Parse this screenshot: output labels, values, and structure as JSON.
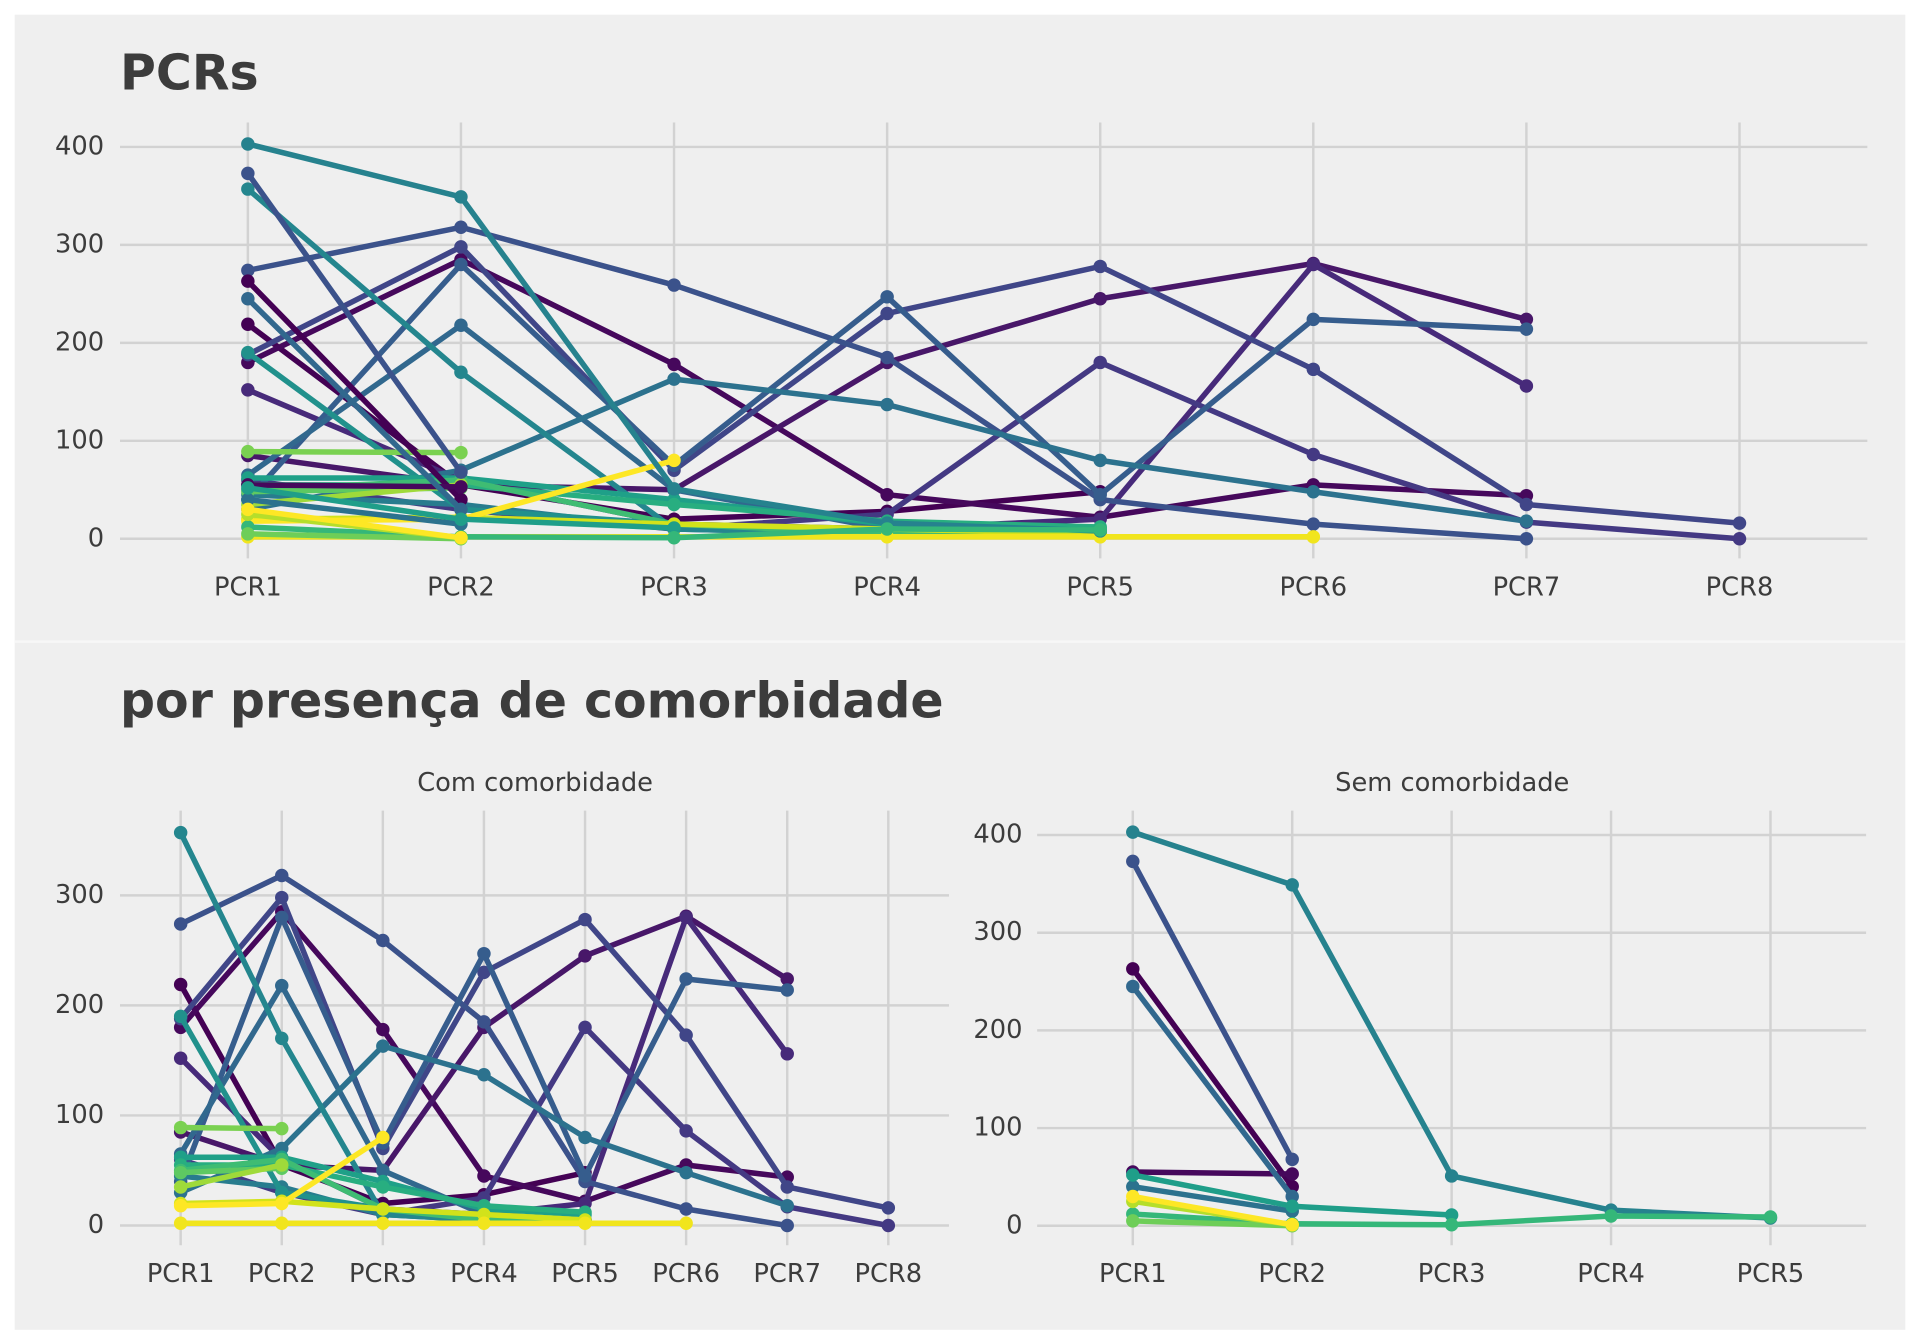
{
  "chart_data": [
    {
      "type": "line",
      "title": "PCRs",
      "categories": [
        "PCR1",
        "PCR2",
        "PCR3",
        "PCR4",
        "PCR5",
        "PCR6",
        "PCR7",
        "PCR8"
      ],
      "ylim": [
        -20,
        425
      ],
      "yticks": [
        0,
        100,
        200,
        300,
        400
      ],
      "grid": true,
      "series": [
        {
          "color": "#440154",
          "values": [
            219,
            55,
            20,
            28,
            48,
            null,
            null,
            null
          ]
        },
        {
          "color": "#46085c",
          "values": [
            180,
            285,
            178,
            45,
            22,
            55,
            44,
            null
          ]
        },
        {
          "color": "#481769",
          "values": [
            85,
            55,
            50,
            180,
            245,
            281,
            224,
            null
          ]
        },
        {
          "color": "#472a7a",
          "values": [
            152,
            60,
            15,
            10,
            20,
            280,
            156,
            null
          ]
        },
        {
          "color": "#443983",
          "values": [
            60,
            30,
            10,
            25,
            180,
            86,
            17,
            0
          ]
        },
        {
          "color": "#404688",
          "values": [
            188,
            298,
            70,
            230,
            278,
            173,
            35,
            16
          ]
        },
        {
          "color": "#3b528b",
          "values": [
            274,
            318,
            259,
            185,
            40,
            15,
            0,
            null
          ]
        },
        {
          "color": "#365d8d",
          "values": [
            40,
            280,
            75,
            247,
            45,
            224,
            214,
            null
          ]
        },
        {
          "color": "#31688e",
          "values": [
            65,
            218,
            50,
            10,
            5,
            null,
            null,
            null
          ]
        },
        {
          "color": "#2c728e",
          "values": [
            30,
            70,
            163,
            137,
            80,
            48,
            18,
            null
          ]
        },
        {
          "color": "#287c8e",
          "values": [
            45,
            35,
            10,
            5,
            5,
            null,
            null,
            null
          ]
        },
        {
          "color": "#24868e",
          "values": [
            357,
            170,
            10,
            5,
            3,
            null,
            null,
            null
          ]
        },
        {
          "color": "#21918c",
          "values": [
            190,
            30,
            15,
            8,
            5,
            null,
            null,
            null
          ]
        },
        {
          "color": "#1fa088",
          "values": [
            62,
            62,
            40,
            15,
            10,
            null,
            null,
            null
          ]
        },
        {
          "color": "#28ae80",
          "values": [
            55,
            55,
            35,
            18,
            12,
            null,
            null,
            null
          ]
        },
        {
          "color": "#3fbc73",
          "values": [
            50,
            60,
            15,
            5,
            3,
            null,
            null,
            null
          ]
        },
        {
          "color": "#5ec962",
          "values": [
            48,
            52,
            null,
            null,
            null,
            null,
            null,
            null
          ]
        },
        {
          "color": "#7ad151",
          "values": [
            89,
            88,
            null,
            null,
            null,
            null,
            null,
            null
          ]
        },
        {
          "color": "#9fda3a",
          "values": [
            35,
            55,
            null,
            null,
            null,
            null,
            null,
            null
          ]
        },
        {
          "color": "#d2e21b",
          "values": [
            20,
            22,
            15,
            10,
            5,
            null,
            null,
            null
          ]
        },
        {
          "color": "#fde725",
          "values": [
            18,
            20,
            80,
            null,
            null,
            null,
            null,
            null
          ]
        },
        {
          "color": "#f1e51d",
          "values": [
            2,
            2,
            2,
            2,
            2,
            2,
            null,
            null
          ]
        },
        {
          "color": "#440154",
          "values": [
            263,
            40,
            null,
            null,
            null,
            null,
            null,
            null
          ]
        },
        {
          "color": "#46085c",
          "values": [
            55,
            53,
            null,
            null,
            null,
            null,
            null,
            null
          ]
        },
        {
          "color": "#3b528b",
          "values": [
            373,
            68,
            null,
            null,
            null,
            null,
            null,
            null
          ]
        },
        {
          "color": "#31688e",
          "values": [
            245,
            30,
            null,
            null,
            null,
            null,
            null,
            null
          ]
        },
        {
          "color": "#2c728e",
          "values": [
            40,
            15,
            null,
            null,
            null,
            null,
            null,
            null
          ]
        },
        {
          "color": "#26828e",
          "values": [
            403,
            349,
            51,
            16,
            8,
            null,
            null,
            null
          ]
        },
        {
          "color": "#1f9e89",
          "values": [
            52,
            20,
            11,
            null,
            null,
            null,
            null,
            null
          ]
        },
        {
          "color": "#35b779",
          "values": [
            12,
            2,
            1,
            10,
            9,
            null,
            null,
            null
          ]
        },
        {
          "color": "#6ece58",
          "values": [
            5,
            0,
            null,
            null,
            null,
            null,
            null,
            null
          ]
        },
        {
          "color": "#b5de2b",
          "values": [
            25,
            1,
            null,
            null,
            null,
            null,
            null,
            null
          ]
        },
        {
          "color": "#fde725",
          "values": [
            30,
            1,
            null,
            null,
            null,
            null,
            null,
            null
          ]
        }
      ]
    },
    {
      "type": "line",
      "title": "por presença de comorbidade",
      "subtitle": "Com comorbidade",
      "categories": [
        "PCR1",
        "PCR2",
        "PCR3",
        "PCR4",
        "PCR5",
        "PCR6",
        "PCR7",
        "PCR8"
      ],
      "ylim": [
        -18,
        377
      ],
      "yticks": [
        0,
        100,
        200,
        300
      ],
      "grid": true,
      "series": [
        {
          "color": "#440154",
          "values": [
            219,
            55,
            20,
            28,
            48,
            null,
            null,
            null
          ]
        },
        {
          "color": "#46085c",
          "values": [
            180,
            285,
            178,
            45,
            22,
            55,
            44,
            null
          ]
        },
        {
          "color": "#481769",
          "values": [
            85,
            55,
            50,
            180,
            245,
            281,
            224,
            null
          ]
        },
        {
          "color": "#472a7a",
          "values": [
            152,
            60,
            15,
            10,
            20,
            280,
            156,
            null
          ]
        },
        {
          "color": "#443983",
          "values": [
            60,
            30,
            10,
            25,
            180,
            86,
            17,
            0
          ]
        },
        {
          "color": "#404688",
          "values": [
            188,
            298,
            70,
            230,
            278,
            173,
            35,
            16
          ]
        },
        {
          "color": "#3b528b",
          "values": [
            274,
            318,
            259,
            185,
            40,
            15,
            0,
            null
          ]
        },
        {
          "color": "#365d8d",
          "values": [
            40,
            280,
            75,
            247,
            45,
            224,
            214,
            null
          ]
        },
        {
          "color": "#31688e",
          "values": [
            65,
            218,
            50,
            10,
            5,
            null,
            null,
            null
          ]
        },
        {
          "color": "#2c728e",
          "values": [
            30,
            70,
            163,
            137,
            80,
            48,
            18,
            null
          ]
        },
        {
          "color": "#287c8e",
          "values": [
            45,
            35,
            10,
            5,
            5,
            null,
            null,
            null
          ]
        },
        {
          "color": "#24868e",
          "values": [
            357,
            170,
            10,
            5,
            3,
            null,
            null,
            null
          ]
        },
        {
          "color": "#21918c",
          "values": [
            190,
            30,
            15,
            8,
            5,
            null,
            null,
            null
          ]
        },
        {
          "color": "#1fa088",
          "values": [
            62,
            62,
            40,
            15,
            10,
            null,
            null,
            null
          ]
        },
        {
          "color": "#28ae80",
          "values": [
            55,
            55,
            35,
            18,
            12,
            null,
            null,
            null
          ]
        },
        {
          "color": "#3fbc73",
          "values": [
            50,
            60,
            15,
            5,
            3,
            null,
            null,
            null
          ]
        },
        {
          "color": "#5ec962",
          "values": [
            48,
            52,
            null,
            null,
            null,
            null,
            null,
            null
          ]
        },
        {
          "color": "#7ad151",
          "values": [
            89,
            88,
            null,
            null,
            null,
            null,
            null,
            null
          ]
        },
        {
          "color": "#9fda3a",
          "values": [
            35,
            55,
            null,
            null,
            null,
            null,
            null,
            null
          ]
        },
        {
          "color": "#d2e21b",
          "values": [
            20,
            22,
            15,
            10,
            5,
            null,
            null,
            null
          ]
        },
        {
          "color": "#fde725",
          "values": [
            18,
            20,
            80,
            null,
            null,
            null,
            null,
            null
          ]
        },
        {
          "color": "#f1e51d",
          "values": [
            2,
            2,
            2,
            2,
            2,
            2,
            null,
            null
          ]
        }
      ]
    },
    {
      "type": "line",
      "subtitle": "Sem comorbidade",
      "categories": [
        "PCR1",
        "PCR2",
        "PCR3",
        "PCR4",
        "PCR5"
      ],
      "ylim": [
        -20,
        425
      ],
      "yticks": [
        0,
        100,
        200,
        300,
        400
      ],
      "grid": true,
      "series": [
        {
          "color": "#440154",
          "values": [
            263,
            40,
            null,
            null,
            null
          ]
        },
        {
          "color": "#46085c",
          "values": [
            55,
            53,
            null,
            null,
            null
          ]
        },
        {
          "color": "#3b528b",
          "values": [
            373,
            68,
            null,
            null,
            null
          ]
        },
        {
          "color": "#31688e",
          "values": [
            245,
            30,
            null,
            null,
            null
          ]
        },
        {
          "color": "#2c728e",
          "values": [
            40,
            15,
            null,
            null,
            null
          ]
        },
        {
          "color": "#26828e",
          "values": [
            403,
            349,
            51,
            16,
            8
          ]
        },
        {
          "color": "#1f9e89",
          "values": [
            52,
            20,
            11,
            null,
            null
          ]
        },
        {
          "color": "#35b779",
          "values": [
            12,
            2,
            1,
            10,
            9
          ]
        },
        {
          "color": "#6ece58",
          "values": [
            5,
            0,
            null,
            null,
            null
          ]
        },
        {
          "color": "#b5de2b",
          "values": [
            25,
            1,
            null,
            null,
            null
          ]
        },
        {
          "color": "#fde725",
          "values": [
            30,
            1,
            null,
            null,
            null
          ]
        }
      ]
    }
  ]
}
